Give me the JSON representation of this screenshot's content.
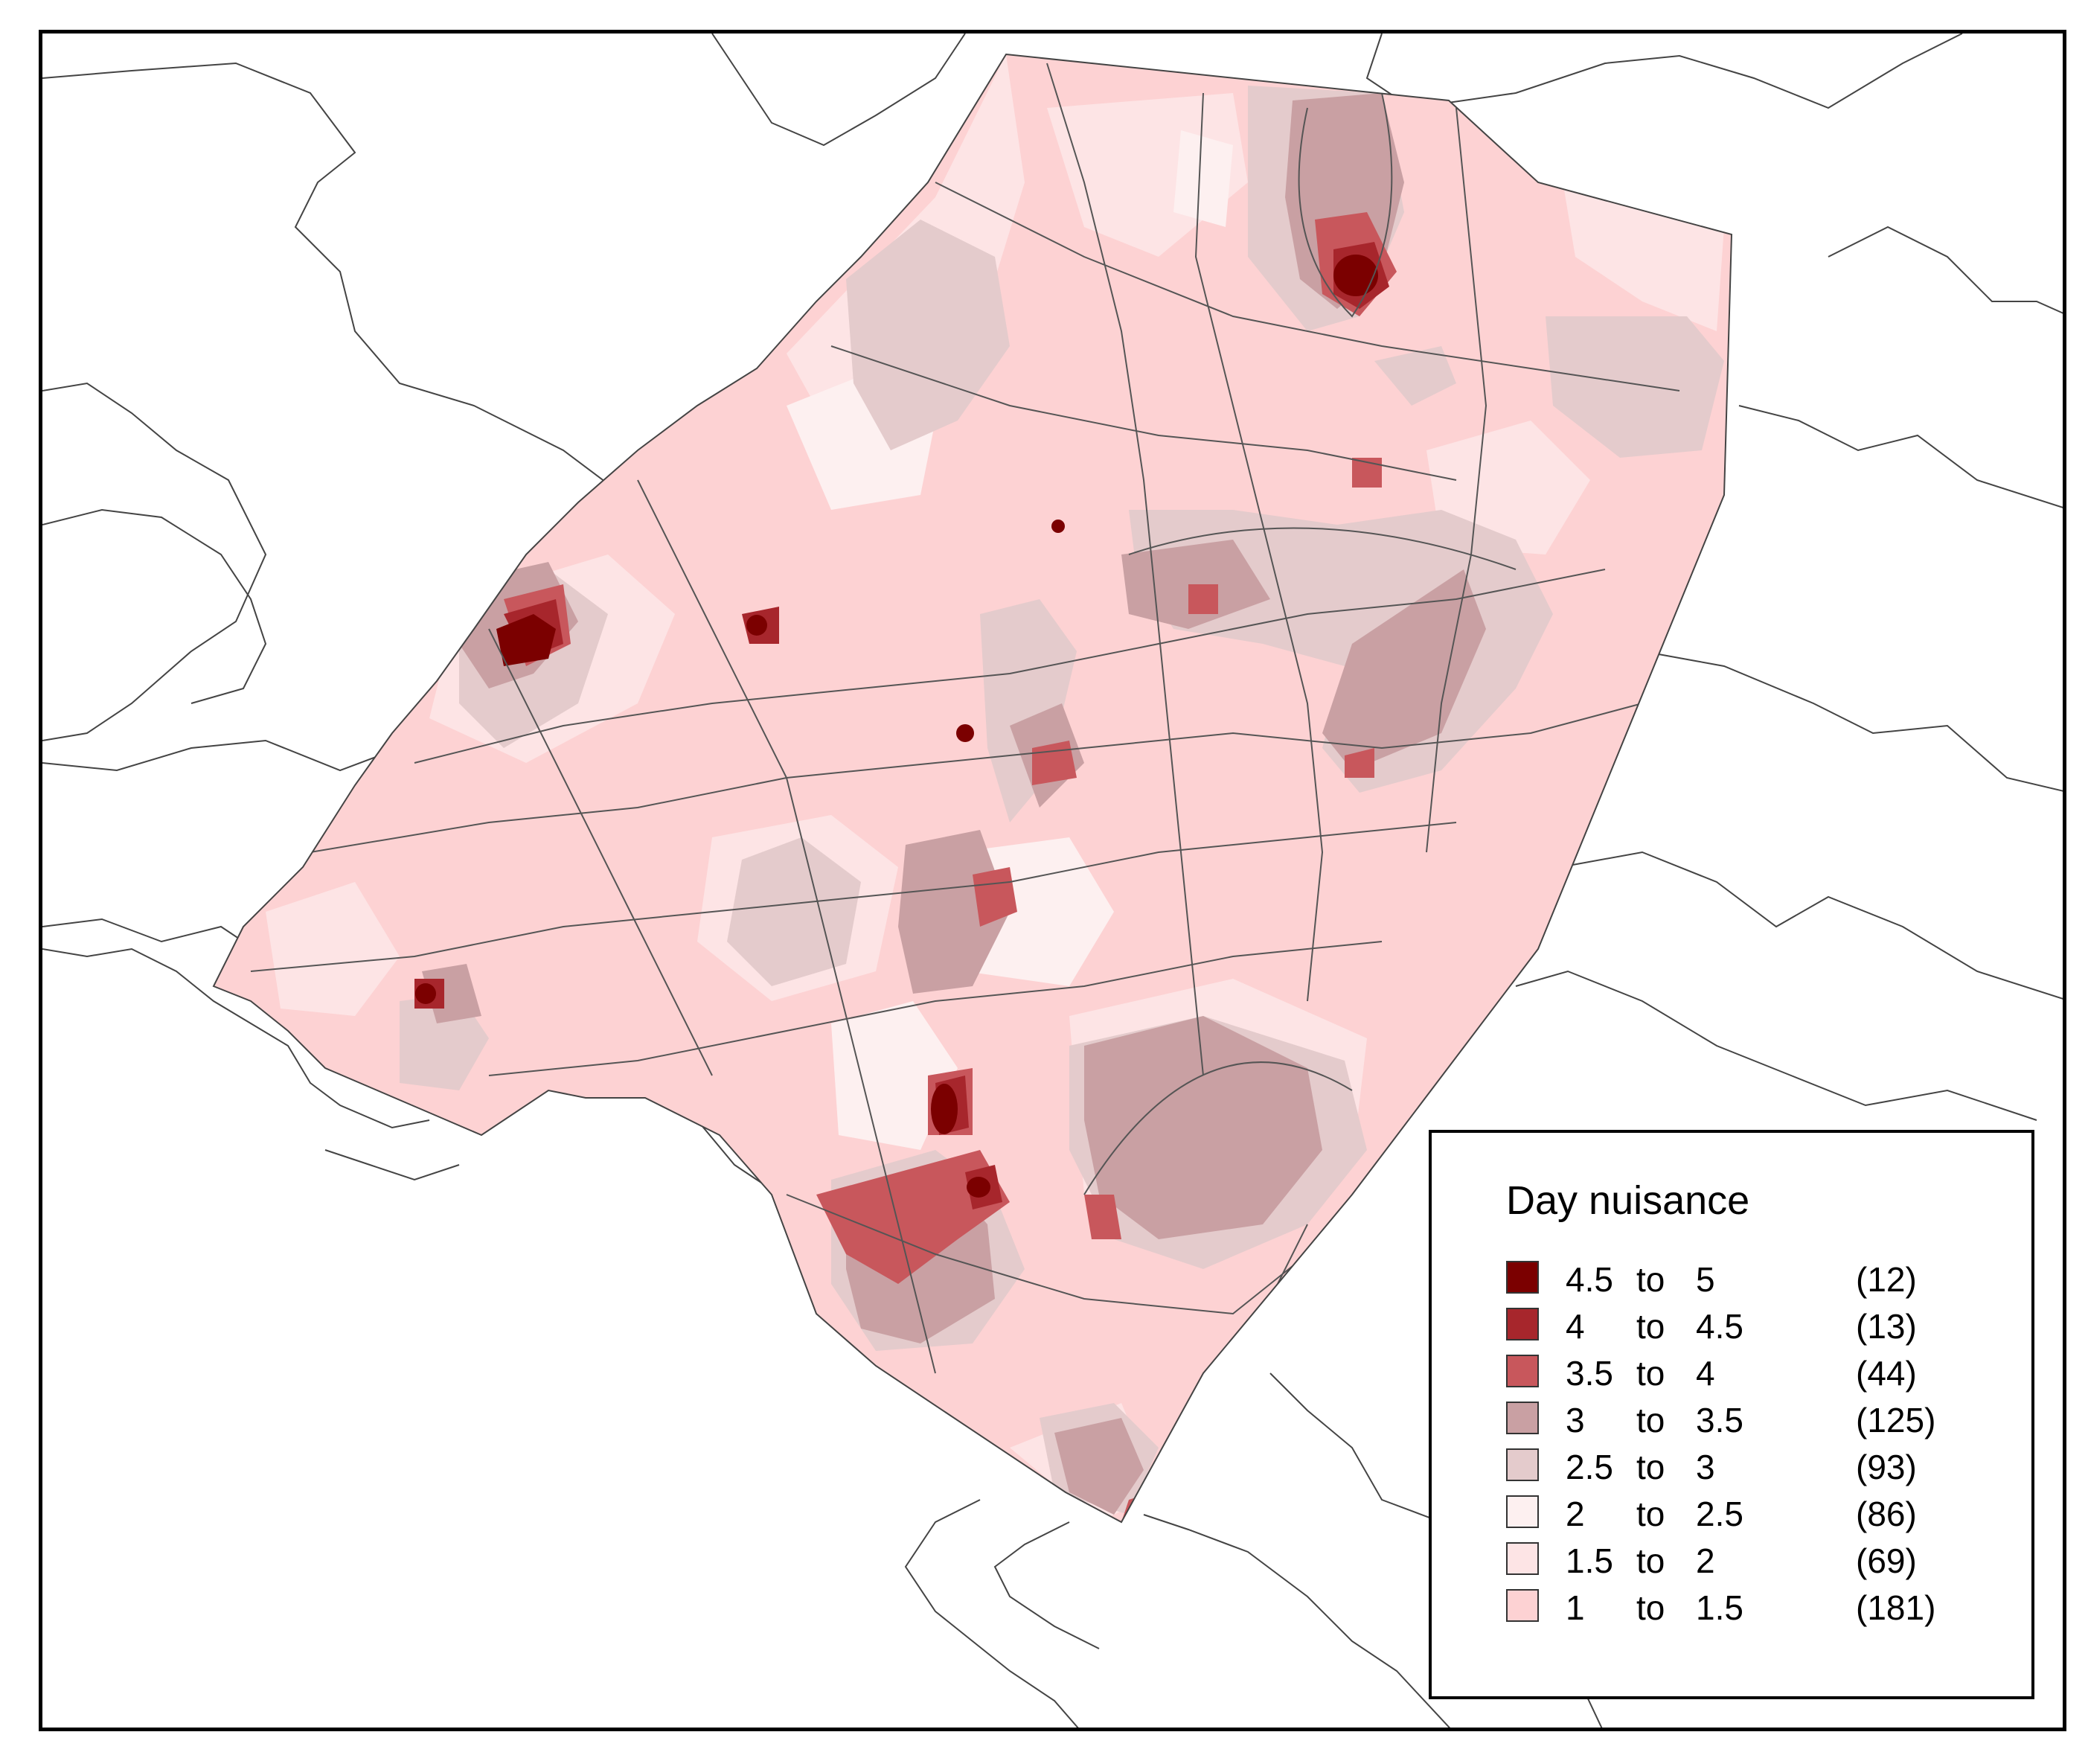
{
  "map": {
    "fill_colors": {
      "base": "#fdd2d3",
      "light": "#fde4e5",
      "lighter": "#fdf0f0",
      "mid": "#e4cbcc",
      "dark": "#c9a0a3",
      "red": "#c8575c",
      "deep_red": "#a7262c",
      "darkest": "#7b0000"
    },
    "boundary_color": "#555555"
  },
  "legend": {
    "title": "Day nuisance",
    "items": [
      {
        "lo": "4.5",
        "to": "to",
        "hi": "5",
        "count": "(12)",
        "color": "#7b0000"
      },
      {
        "lo": "4",
        "to": "to",
        "hi": "4.5",
        "count": "(13)",
        "color": "#a7262c"
      },
      {
        "lo": "3.5",
        "to": "to",
        "hi": "4",
        "count": "(44)",
        "color": "#c8575c"
      },
      {
        "lo": "3",
        "to": "to",
        "hi": "3.5",
        "count": "(125)",
        "color": "#c9a0a3"
      },
      {
        "lo": "2.5",
        "to": "to",
        "hi": "3",
        "count": "(93)",
        "color": "#e4cbcc"
      },
      {
        "lo": "2",
        "to": "to",
        "hi": "2.5",
        "count": "(86)",
        "color": "#fdf0f0"
      },
      {
        "lo": "1.5",
        "to": "to",
        "hi": "2",
        "count": "(69)",
        "color": "#fde4e5"
      },
      {
        "lo": "1",
        "to": "to",
        "hi": "1.5",
        "count": "(181)",
        "color": "#fdd2d3"
      }
    ]
  }
}
